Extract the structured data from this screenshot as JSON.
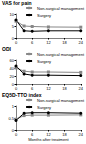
{
  "chart_data": [
    {
      "type": "line",
      "title": "VAS for pain",
      "x": [
        0,
        3,
        6,
        12,
        24
      ],
      "xlim": [
        0,
        24
      ],
      "xticks": [
        0,
        6,
        12,
        18,
        24
      ],
      "ylim": [
        0,
        10
      ],
      "yticks": [
        0,
        5,
        10
      ],
      "series": [
        {
          "name": "Non-surgical management",
          "color": "#888888",
          "marker": "square",
          "values": [
            7,
            5,
            4.8,
            4.6,
            4.5
          ]
        },
        {
          "name": "Surgery",
          "color": "#000000",
          "marker": "circle",
          "values": [
            7.5,
            3,
            2.8,
            3,
            3
          ]
        }
      ],
      "legend": "top-right",
      "grid": false
    },
    {
      "type": "line",
      "title": "ODI",
      "x": [
        0,
        3,
        6,
        12,
        24
      ],
      "xlim": [
        0,
        24
      ],
      "xticks": [
        0,
        6,
        12,
        18,
        24
      ],
      "ylim": [
        0,
        60
      ],
      "yticks": [
        0,
        20,
        40,
        60
      ],
      "series": [
        {
          "name": "Non-surgical management",
          "color": "#888888",
          "marker": "square",
          "values": [
            40,
            32,
            30,
            30,
            29
          ]
        },
        {
          "name": "Surgery",
          "color": "#000000",
          "marker": "circle",
          "values": [
            45,
            25,
            22,
            22,
            21
          ]
        }
      ],
      "legend": "top-right",
      "grid": false
    },
    {
      "type": "line",
      "title": "EQ5D-TTO index",
      "xlabel": "Months after treatment",
      "x": [
        0,
        3,
        6,
        12,
        24
      ],
      "xlim": [
        0,
        24
      ],
      "xticks": [
        0,
        6,
        12,
        18,
        24
      ],
      "ylim": [
        0,
        1
      ],
      "yticks": [
        0,
        0.5,
        1
      ],
      "series": [
        {
          "name": "Non-surgical management",
          "color": "#888888",
          "marker": "square",
          "values": [
            0.45,
            0.6,
            0.62,
            0.62,
            0.63
          ]
        },
        {
          "name": "Surgery",
          "color": "#000000",
          "marker": "circle",
          "values": [
            0.4,
            0.7,
            0.72,
            0.72,
            0.7
          ]
        }
      ],
      "legend": "top-right",
      "grid": false
    }
  ]
}
